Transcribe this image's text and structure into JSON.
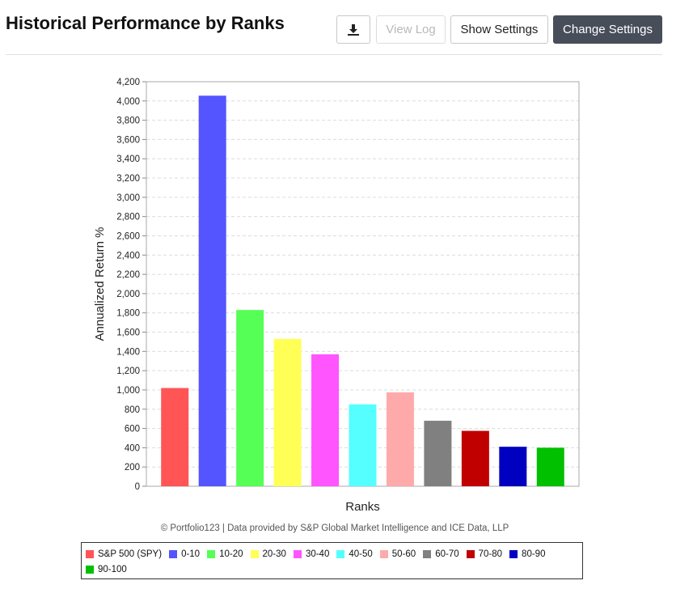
{
  "header": {
    "title": "Historical Performance by Ranks",
    "download_icon": "download-icon",
    "view_log_label": "View Log",
    "show_settings_label": "Show Settings",
    "change_settings_label": "Change Settings"
  },
  "chart_data": {
    "type": "bar",
    "title": "",
    "xlabel": "Ranks",
    "ylabel": "Annualized Return %",
    "ylim": [
      0,
      4200
    ],
    "yticks": [
      0,
      200,
      400,
      600,
      800,
      1000,
      1200,
      1400,
      1600,
      1800,
      2000,
      2200,
      2400,
      2600,
      2800,
      3000,
      3200,
      3400,
      3600,
      3800,
      4000,
      4200
    ],
    "ytick_labels": [
      "0",
      "200",
      "400",
      "600",
      "800",
      "1,000",
      "1,200",
      "1,400",
      "1,600",
      "1,800",
      "2,000",
      "2,200",
      "2,400",
      "2,600",
      "2,800",
      "3,000",
      "3,200",
      "3,400",
      "3,600",
      "3,800",
      "4,000",
      "4,200"
    ],
    "grid": true,
    "legend_position": "bottom",
    "categories": [
      "S&P 500 (SPY)",
      "0-10",
      "10-20",
      "20-30",
      "30-40",
      "40-50",
      "50-60",
      "60-70",
      "70-80",
      "80-90",
      "90-100"
    ],
    "values": [
      1020,
      4055,
      1830,
      1530,
      1370,
      850,
      975,
      680,
      575,
      410,
      400
    ],
    "colors": [
      "#ff5555",
      "#5555ff",
      "#55ff55",
      "#ffff55",
      "#ff55ff",
      "#55ffff",
      "#ffaaaa",
      "#808080",
      "#c00000",
      "#0000c0",
      "#00c000"
    ]
  },
  "credit": "© Portfolio123 | Data provided by S&P Global Market Intelligence and ICE Data, LLP"
}
